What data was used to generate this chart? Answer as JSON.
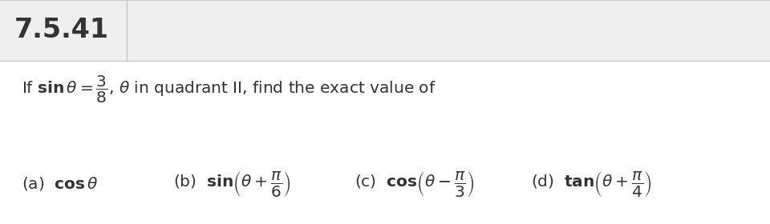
{
  "title": "7.5.41",
  "bg_color": "#ffffff",
  "header_bg": "#efefef",
  "border_color": "#c8c8c8",
  "text_color": "#333333",
  "title_fontsize": 24,
  "body_fontsize": 15
}
